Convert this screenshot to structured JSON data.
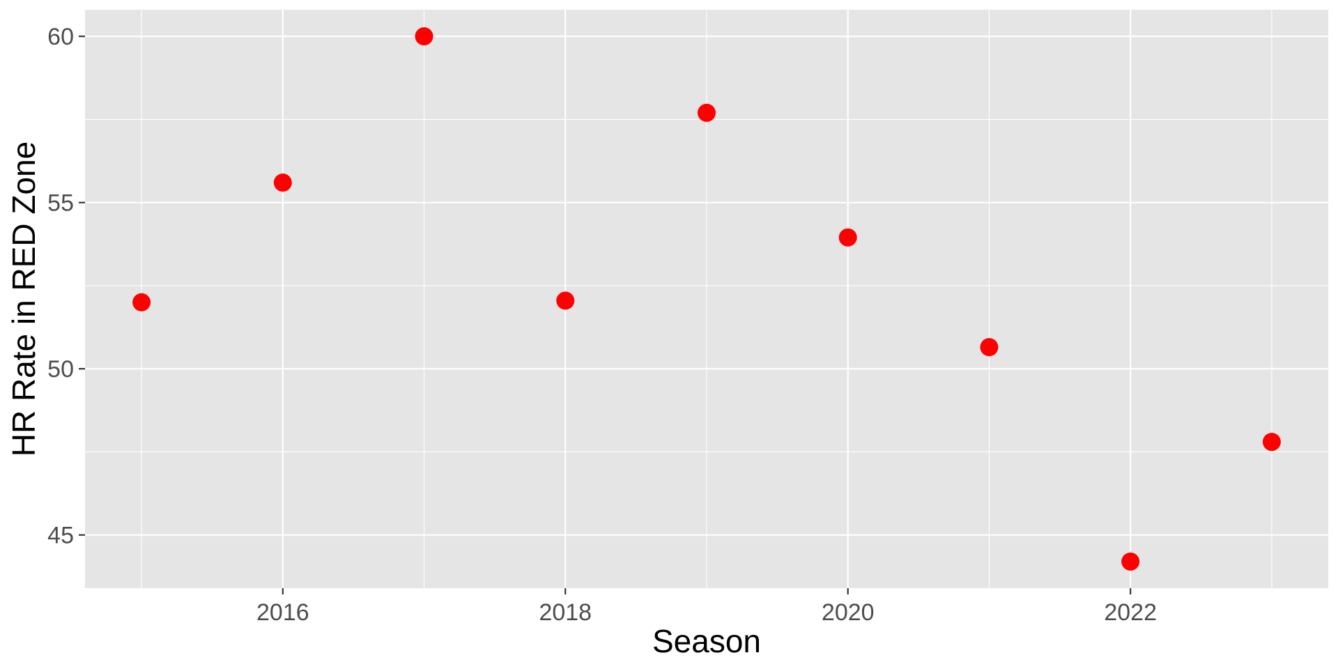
{
  "chart_data": {
    "type": "scatter",
    "title": "",
    "xlabel": "Season",
    "ylabel": "HR Rate in RED Zone",
    "x_ticks": [
      "2016",
      "2018",
      "2020",
      "2022"
    ],
    "y_ticks": [
      "45",
      "50",
      "55",
      "60"
    ],
    "xlim": [
      2014.6,
      2023.4
    ],
    "ylim": [
      43.4,
      60.8
    ],
    "grid": true,
    "legend": "none",
    "point_color": "#ff0000",
    "panel_color": "#e5e5e5",
    "series": [
      {
        "x": [
          2015,
          2016,
          2017,
          2018,
          2019,
          2020,
          2021,
          2022,
          2023
        ],
        "y": [
          52.0,
          55.6,
          60.0,
          52.05,
          57.7,
          53.95,
          50.65,
          44.2,
          47.8
        ]
      }
    ]
  }
}
